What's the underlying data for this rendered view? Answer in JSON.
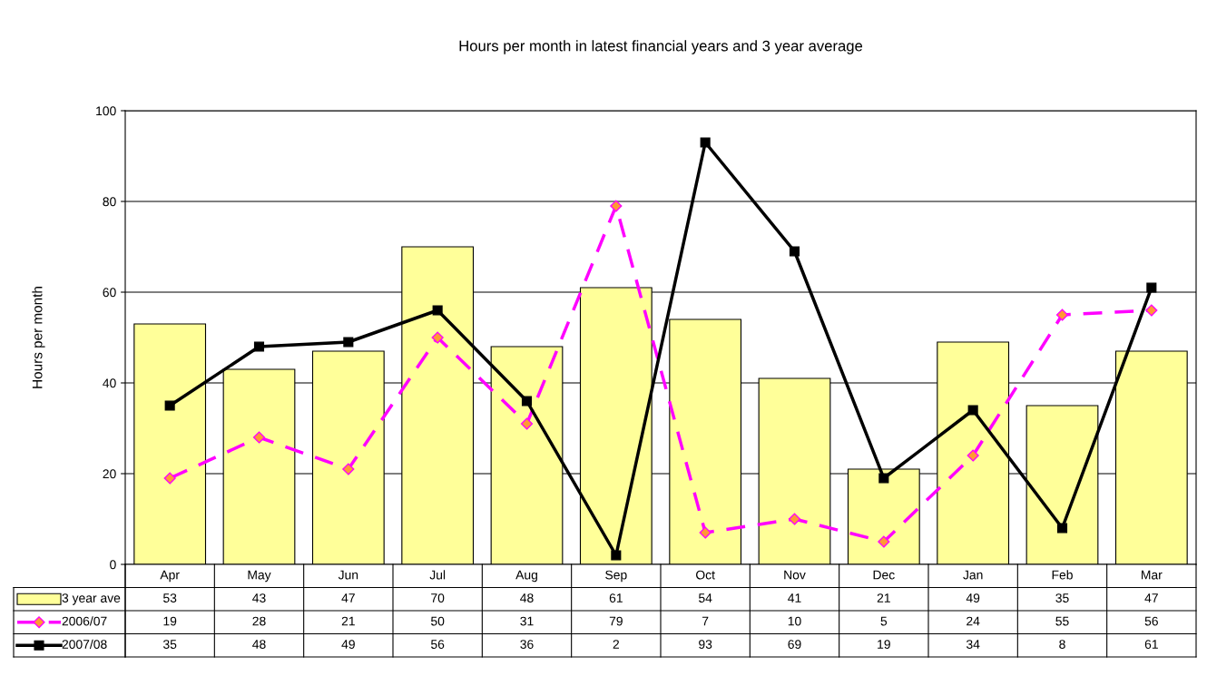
{
  "chart_data": {
    "type": "bar",
    "title": "Hours per month in latest financial years and 3 year average",
    "ylabel": "Hours per month",
    "categories": [
      "Apr",
      "May",
      "Jun",
      "Jul",
      "Aug",
      "Sep",
      "Oct",
      "Nov",
      "Dec",
      "Jan",
      "Feb",
      "Mar"
    ],
    "series": [
      {
        "name": "3 year ave",
        "color": "#ffff99",
        "values": [
          53,
          43,
          47,
          70,
          48,
          61,
          54,
          41,
          21,
          49,
          35,
          47
        ]
      },
      {
        "name": "2006/07",
        "type": "line",
        "color": "#ff00ff",
        "marker": "diamond",
        "line_style": "dashed",
        "values": [
          19,
          28,
          21,
          50,
          31,
          79,
          7,
          10,
          5,
          24,
          55,
          56
        ]
      },
      {
        "name": "2007/08",
        "type": "line",
        "color": "#000000",
        "marker": "square",
        "line_style": "solid",
        "values": [
          35,
          48,
          49,
          56,
          36,
          2,
          93,
          69,
          19,
          34,
          8,
          61
        ]
      }
    ],
    "ylim": [
      0,
      100
    ],
    "yticks": [
      0,
      20,
      40,
      60,
      80,
      100
    ],
    "grid": "y",
    "data_labels": true,
    "legend": "bottom left"
  }
}
